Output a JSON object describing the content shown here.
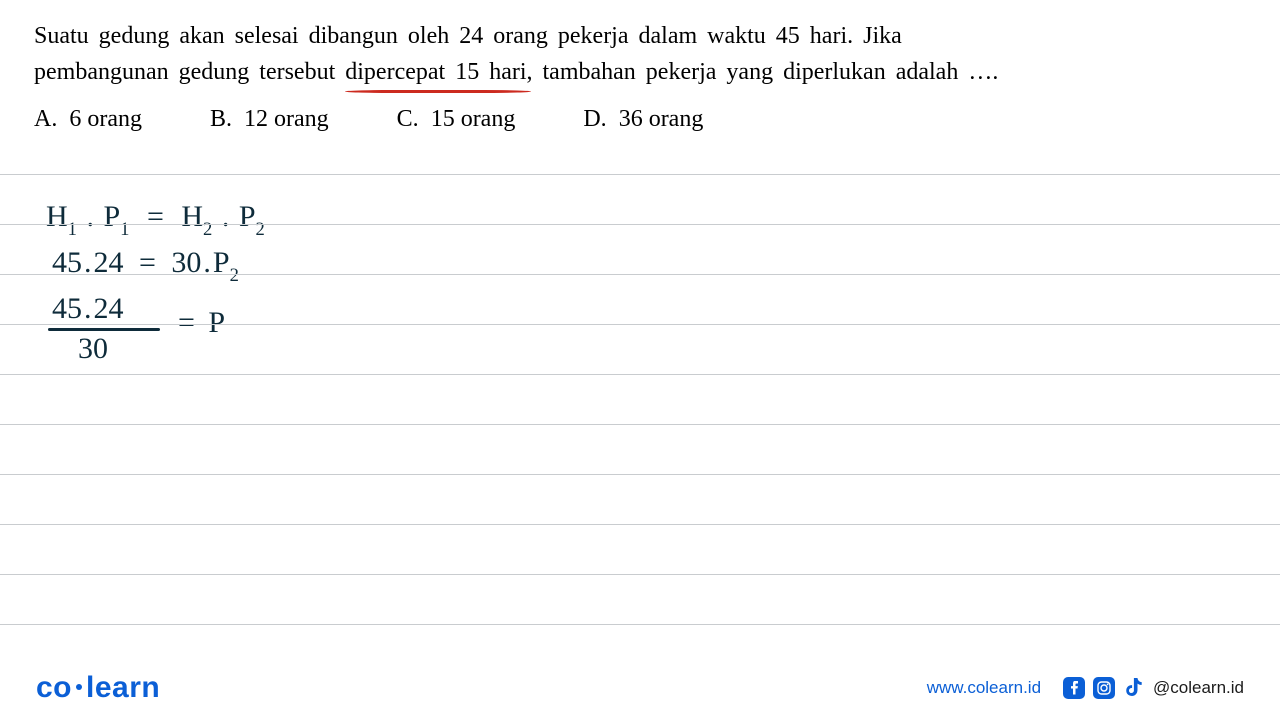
{
  "question": {
    "line1_pre": "Suatu gedung akan selesai dibangun oleh 24 orang pekerja dalam waktu 45 hari. Jika",
    "line2_pre": "pembangunan gedung tersebut ",
    "underlined": "dipercepat 15 hari",
    "line2_post": " tambahan pekerja yang diperlukan adalah ….",
    "comma": ",",
    "underline_color": "#cc2a1f"
  },
  "options": [
    {
      "label": "A.",
      "text": "6 orang"
    },
    {
      "label": "B.",
      "text": "12 orang"
    },
    {
      "label": "C.",
      "text": "15 orang"
    },
    {
      "label": "D.",
      "text": "36 orang"
    }
  ],
  "ruled_lines": {
    "start_y": 0,
    "spacing": 50,
    "count": 10,
    "color": "#c9cccf"
  },
  "handwriting": {
    "color": "#0e2b3a",
    "font_size": 30,
    "eq1": {
      "H": "H",
      "one": "1",
      "dot1": ".",
      "P1": "P",
      "p1sub": "1",
      "eq": "=",
      "H2": "H",
      "two": "2",
      "dot2": ".",
      "P2": "P",
      "p2sub": "2"
    },
    "eq2": {
      "lhs1": "45",
      "dot1": ".",
      "lhs2": "24",
      "eq": "=",
      "rhs1": "30",
      "dot2": ".",
      "P": "P",
      "psub": "2"
    },
    "eq3": {
      "num1": "45",
      "dot": ".",
      "num2": "24",
      "den": "30",
      "eq": "=",
      "P": "P"
    }
  },
  "footer": {
    "brand_pre": "co",
    "brand_post": "learn",
    "website": "www.colearn.id",
    "handle": "@colearn.id",
    "brand_color": "#0b5fd6"
  }
}
